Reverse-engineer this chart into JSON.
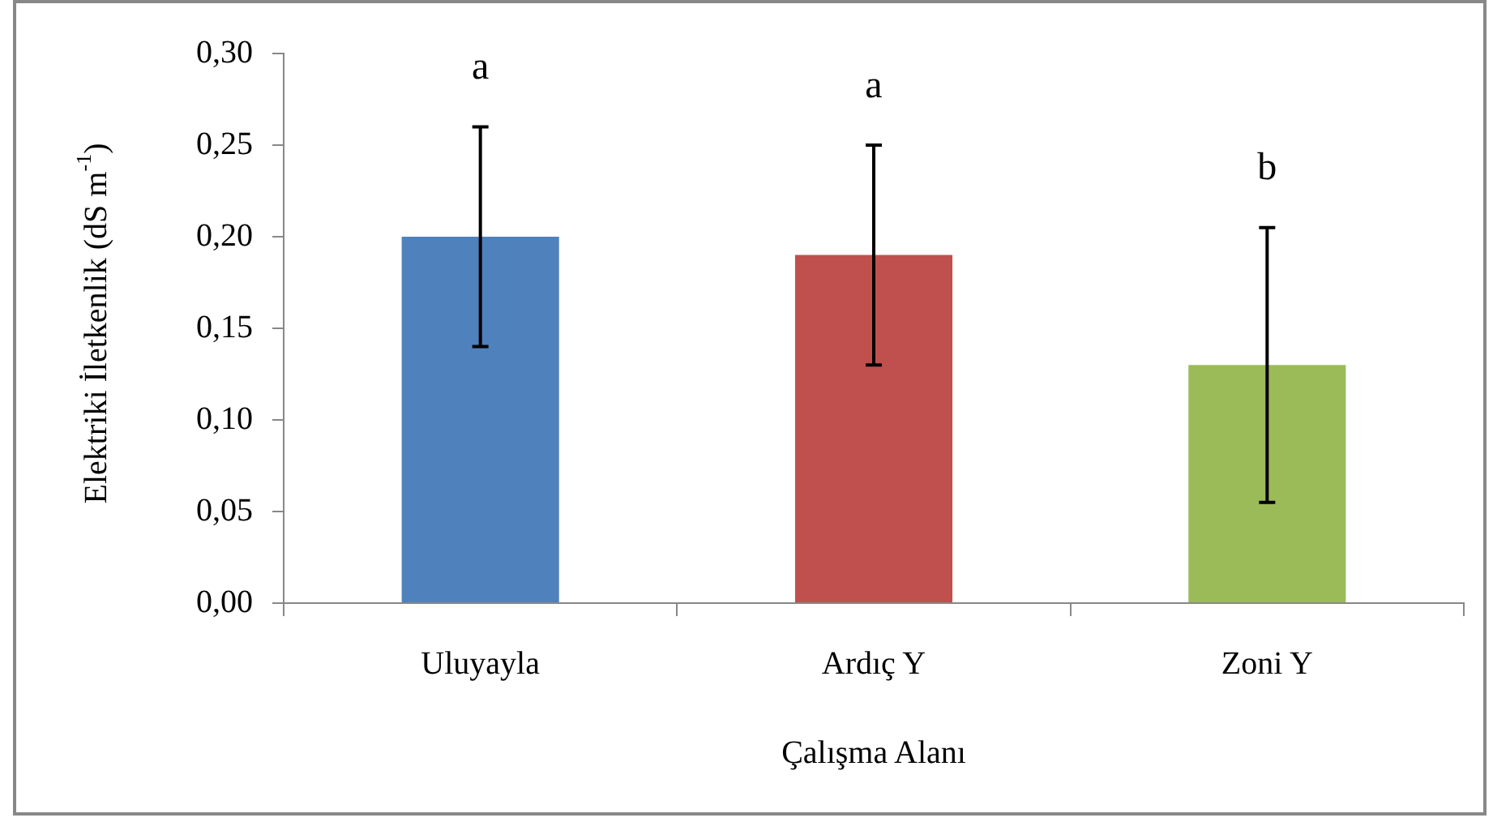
{
  "chart_data": {
    "type": "bar",
    "xlabel": "Çalışma Alanı",
    "ylabel": "Elektriki İletkenlik (dS m$^{-1}$)",
    "categories": [
      "Uluyayla",
      "Ardıç Y",
      "Zoni Y"
    ],
    "values": [
      0.2,
      0.19,
      0.13
    ],
    "colors": [
      "#4f81bd",
      "#c0504d",
      "#9bbb59"
    ],
    "errors": [
      0.06,
      0.06,
      0.075
    ],
    "ylim": [
      0,
      0.3
    ],
    "yticks": [
      {
        "value": 0,
        "label": "0,00"
      },
      {
        "value": 0.05,
        "label": "0,05"
      },
      {
        "value": 0.1,
        "label": "0,10"
      },
      {
        "value": 0.15,
        "label": "0,15"
      },
      {
        "value": 0.2,
        "label": "0,20"
      },
      {
        "value": 0.25,
        "label": "0,25"
      },
      {
        "value": 0.3,
        "label": "0,30"
      }
    ],
    "annotations": [
      "a",
      "a",
      "b"
    ],
    "grid": false,
    "legend": false
  }
}
